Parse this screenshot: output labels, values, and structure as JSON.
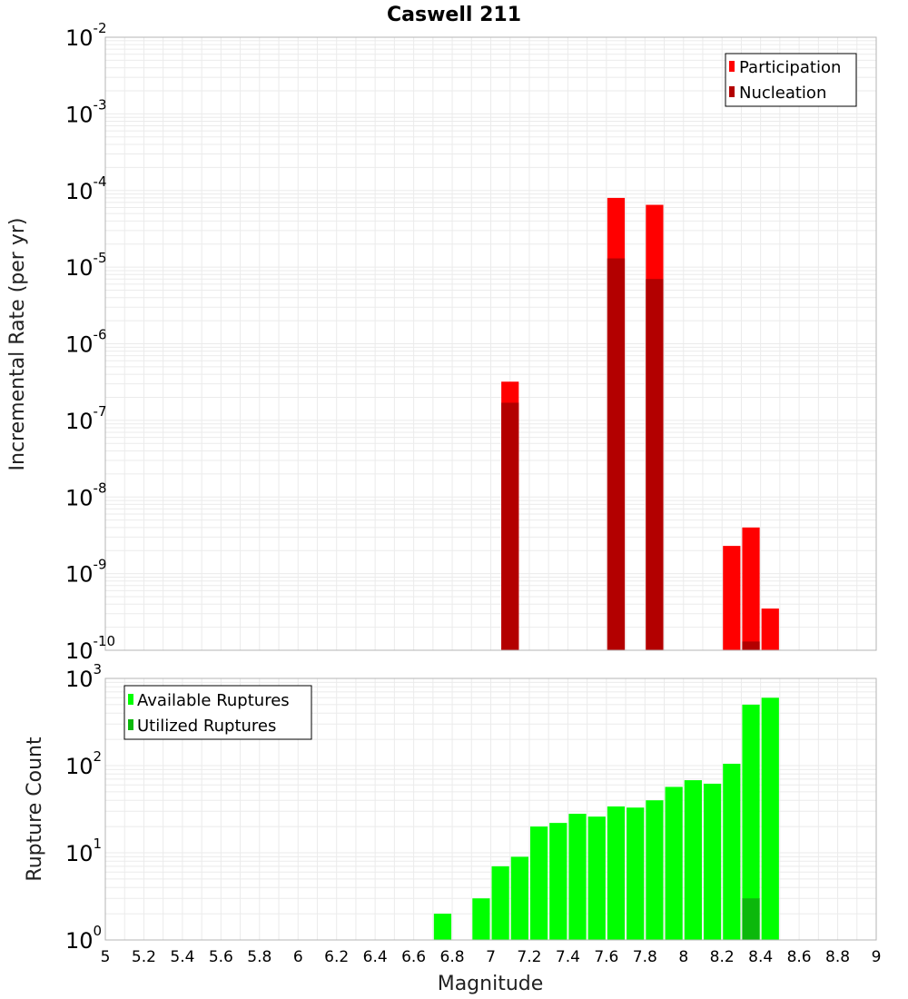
{
  "title": "Caswell 211",
  "xlabel": "Magnitude",
  "colors": {
    "participation": "#ff0000",
    "nucleation": "#b30000",
    "available": "#00ff00",
    "utilized": "#0cb80c",
    "grid": "#ebebeb",
    "frame": "#b4b4b4"
  },
  "chart_data": [
    {
      "type": "bar",
      "ylabel": "Incremental Rate (per yr)",
      "yscale": "log",
      "ylim_exp": [
        -10,
        -2
      ],
      "xlim": [
        5,
        9
      ],
      "bar_width": 0.1,
      "legend_position": "top-right",
      "series": [
        {
          "name": "Participation",
          "x": [
            7.1,
            7.65,
            7.85,
            8.25,
            8.35,
            8.45
          ],
          "values": [
            3.2e-07,
            8e-05,
            6.5e-05,
            2.3e-09,
            4e-09,
            3.5e-10
          ]
        },
        {
          "name": "Nucleation",
          "x": [
            7.1,
            7.65,
            7.85,
            8.35
          ],
          "values": [
            1.7e-07,
            1.3e-05,
            7e-06,
            1.3e-10
          ]
        }
      ]
    },
    {
      "type": "bar",
      "ylabel": "Rupture Count",
      "yscale": "log",
      "ylim_exp": [
        0,
        3
      ],
      "xlim": [
        5,
        9
      ],
      "bar_width": 0.1,
      "legend_position": "top-left",
      "series": [
        {
          "name": "Available Ruptures",
          "x": [
            6.75,
            6.85,
            6.95,
            7.05,
            7.15,
            7.25,
            7.35,
            7.45,
            7.55,
            7.65,
            7.75,
            7.85,
            7.95,
            8.05,
            8.15,
            8.25,
            8.35,
            8.45
          ],
          "values": [
            2,
            1,
            3,
            7,
            9,
            20,
            22,
            28,
            26,
            34,
            33,
            40,
            57,
            68,
            62,
            105,
            500,
            600
          ]
        },
        {
          "name": "Utilized Ruptures",
          "x": [
            7.15,
            7.65,
            7.85,
            8.25,
            8.35,
            8.45
          ],
          "values": [
            1,
            1,
            1,
            1,
            3,
            1
          ]
        }
      ]
    }
  ],
  "xticks": [
    "5",
    "5.2",
    "5.4",
    "5.6",
    "5.8",
    "6",
    "6.2",
    "6.4",
    "6.6",
    "6.8",
    "7",
    "7.2",
    "7.4",
    "7.6",
    "7.8",
    "8",
    "8.2",
    "8.4",
    "8.6",
    "8.8",
    "9"
  ],
  "yticks_top": [
    {
      "base": "10",
      "exp": "-2"
    },
    {
      "base": "10",
      "exp": "-3"
    },
    {
      "base": "10",
      "exp": "-4"
    },
    {
      "base": "10",
      "exp": "-5"
    },
    {
      "base": "10",
      "exp": "-6"
    },
    {
      "base": "10",
      "exp": "-7"
    },
    {
      "base": "10",
      "exp": "-8"
    },
    {
      "base": "10",
      "exp": "-9"
    },
    {
      "base": "10",
      "exp": "-10"
    }
  ],
  "yticks_bottom": [
    {
      "base": "10",
      "exp": "3"
    },
    {
      "base": "10",
      "exp": "2"
    },
    {
      "base": "10",
      "exp": "1"
    },
    {
      "base": "10",
      "exp": "0"
    }
  ]
}
